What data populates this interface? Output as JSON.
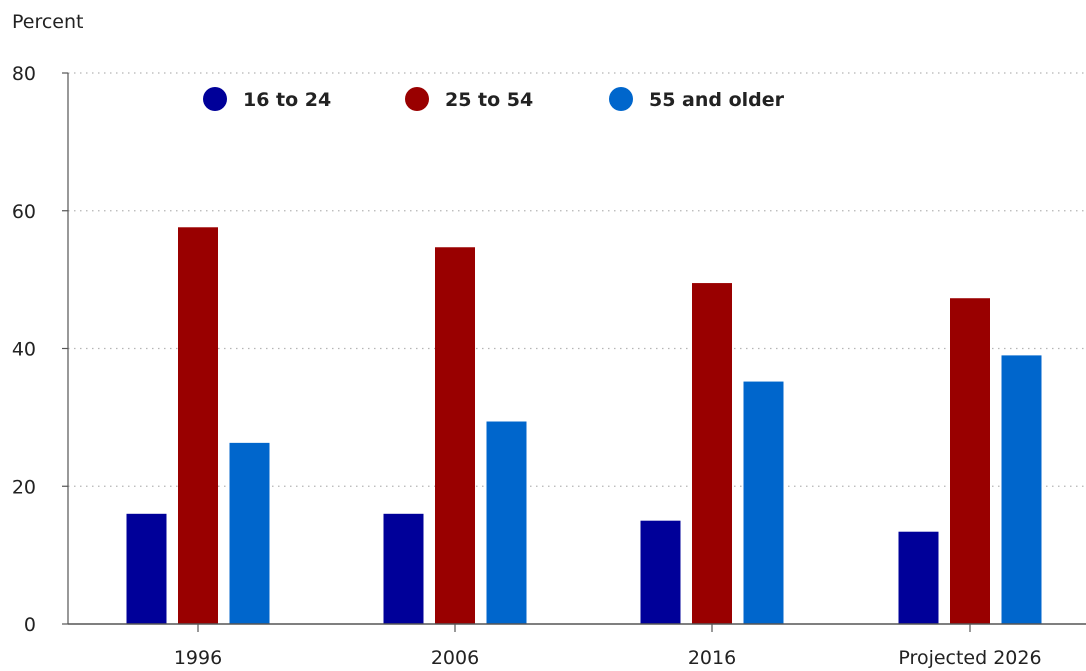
{
  "chart_data": {
    "type": "bar",
    "ylabel": "Percent",
    "ylim": [
      0,
      80
    ],
    "yticks": [
      0,
      20,
      40,
      60,
      80
    ],
    "grid": true,
    "legend_position": "top",
    "categories": [
      "1996",
      "2006",
      "2016",
      "Projected 2026"
    ],
    "series": [
      {
        "name": "16 to 24",
        "color": "#000099",
        "values": [
          16.0,
          16.0,
          15.0,
          13.4
        ]
      },
      {
        "name": "25 to 54",
        "color": "#990000",
        "values": [
          57.6,
          54.7,
          49.5,
          47.3
        ]
      },
      {
        "name": "55 and older",
        "color": "#0066CC",
        "values": [
          26.3,
          29.4,
          35.2,
          39.0
        ]
      }
    ]
  }
}
